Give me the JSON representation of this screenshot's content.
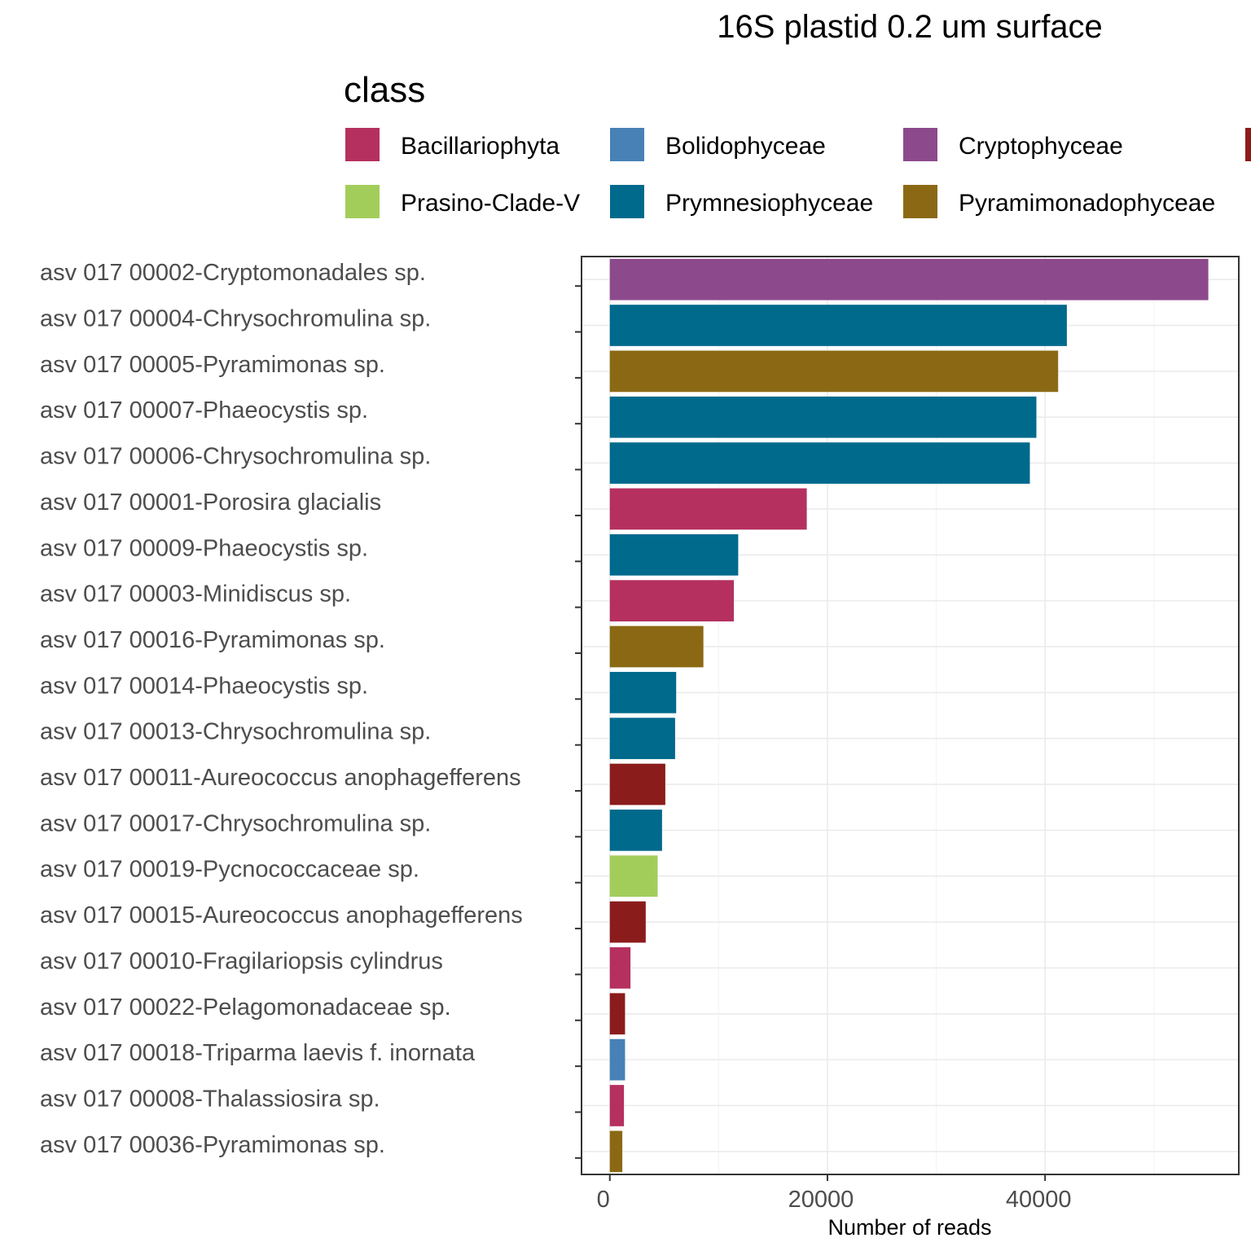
{
  "chart_data": {
    "type": "bar",
    "orientation": "horizontal",
    "title": "16S plastid 0.2 um surface",
    "xlabel": "Number of reads",
    "ylabel": "",
    "xlim": [
      -2600,
      57800
    ],
    "xticks": [
      0,
      20000,
      40000
    ],
    "xtick_labels": [
      "0",
      "20000",
      "40000"
    ],
    "grid": true,
    "legend": {
      "title": "class",
      "placement": "top",
      "entries": [
        {
          "name": "Bacillariophyta",
          "color": "#b5305f"
        },
        {
          "name": "Bolidophyceae",
          "color": "#4781b6"
        },
        {
          "name": "Cryptophyceae",
          "color": "#8c4a8c"
        },
        {
          "name": "",
          "color": "#8b1c1c"
        },
        {
          "name": "Prasino-Clade-V",
          "color": "#a3cd5b"
        },
        {
          "name": "Prymnesiophyceae",
          "color": "#006a8c"
        },
        {
          "name": "Pyramimonadophyceae",
          "color": "#8b6914"
        }
      ]
    },
    "categories": [
      "asv 017 00002-Cryptomonadales sp.",
      "asv 017 00004-Chrysochromulina sp.",
      "asv 017 00005-Pyramimonas sp.",
      "asv 017 00007-Phaeocystis sp.",
      "asv 017 00006-Chrysochromulina sp.",
      "asv 017 00001-Porosira glacialis",
      "asv 017 00009-Phaeocystis sp.",
      "asv 017 00003-Minidiscus sp.",
      "asv 017 00016-Pyramimonas sp.",
      "asv 017 00014-Phaeocystis sp.",
      "asv 017 00013-Chrysochromulina sp.",
      "asv 017 00011-Aureococcus anophagefferens",
      "asv 017 00017-Chrysochromulina sp.",
      "asv 017 00019-Pycnococcaceae sp.",
      "asv 017 00015-Aureococcus anophagefferens",
      "asv 017 00010-Fragilariopsis cylindrus",
      "asv 017 00022-Pelagomonadaceae sp.",
      "asv 017 00018-Triparma laevis f. inornata",
      "asv 017 00008-Thalassiosira sp.",
      "asv 017 00036-Pyramimonas sp."
    ],
    "values": [
      55000,
      42000,
      41200,
      39200,
      38600,
      18100,
      11800,
      11400,
      8600,
      6100,
      6000,
      5100,
      4800,
      4400,
      3300,
      1900,
      1400,
      1400,
      1300,
      1150
    ],
    "classes": [
      2,
      5,
      6,
      5,
      5,
      0,
      5,
      0,
      6,
      5,
      5,
      3,
      5,
      4,
      3,
      0,
      3,
      1,
      0,
      6
    ]
  }
}
